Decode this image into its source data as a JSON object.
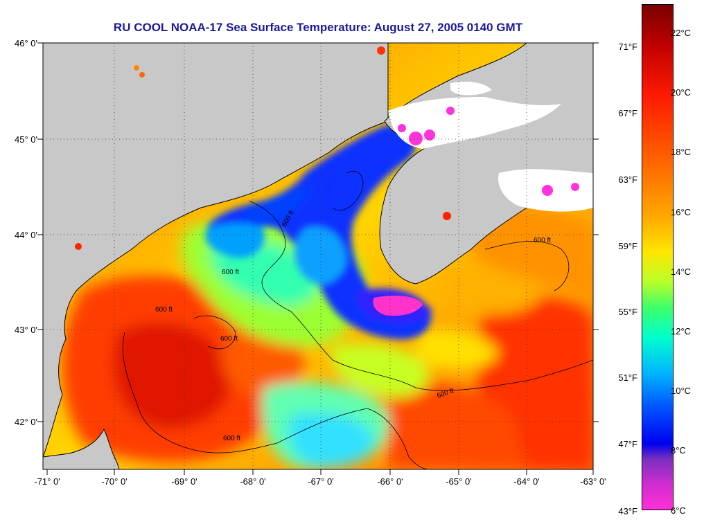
{
  "title": "RU COOL  NOAA-17  Sea Surface Temperature:  August 27, 2005 0140 GMT",
  "latitude_labels": [
    "46° 0'",
    "45° 0'",
    "44° 0'",
    "43° 0'",
    "42° 0'"
  ],
  "longitude_labels": [
    "-71° 0'",
    "-70° 0'",
    "-69° 0'",
    "-68° 0'",
    "-67° 0'",
    "-66° 0'",
    "-65° 0'",
    "-64° 0'",
    "-63° 0'"
  ],
  "fahrenheit_labels": [
    "71°F",
    "67°F",
    "63°F",
    "59°F",
    "55°F",
    "51°F",
    "47°F",
    "43°F"
  ],
  "celsius_labels": [
    "22°C",
    "20°C",
    "18°C",
    "16°C",
    "14°C",
    "12°C",
    "10°C",
    "8°C",
    "6°C"
  ],
  "contour_label": "600 ft",
  "colors": {
    "title": "#1a1a9c",
    "land": "#c8c8c8",
    "cloud": "#ffffff",
    "warm": "#ff3a00",
    "cold": "#0a2aff"
  }
}
